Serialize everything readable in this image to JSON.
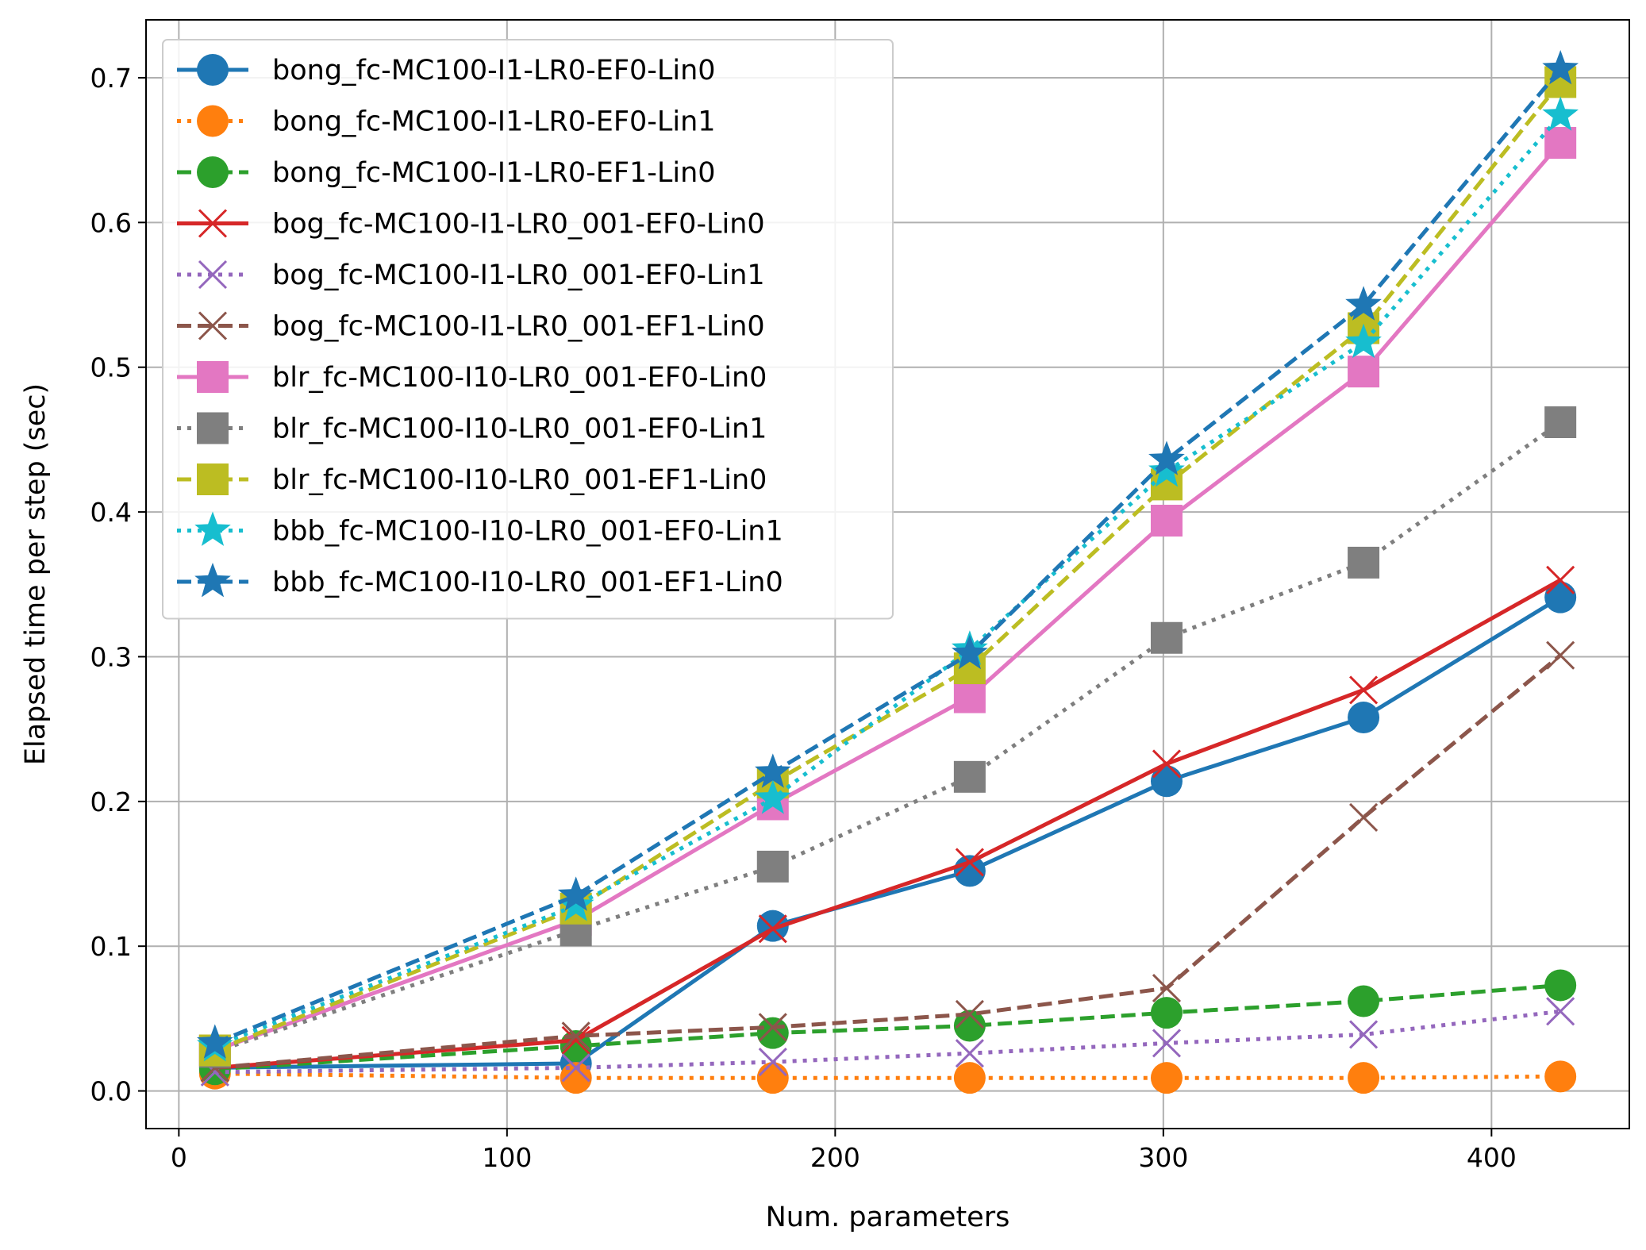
{
  "chart_data": {
    "type": "line",
    "title": "",
    "xlabel": "Num. parameters",
    "ylabel": "Elapsed time per step (sec)",
    "xlim": [
      -10,
      442
    ],
    "ylim": [
      -0.026,
      0.74
    ],
    "xticks": [
      0,
      100,
      200,
      300,
      400
    ],
    "yticks": [
      0.0,
      0.1,
      0.2,
      0.3,
      0.4,
      0.5,
      0.6,
      0.7
    ],
    "xtick_labels": [
      "0",
      "100",
      "200",
      "300",
      "400"
    ],
    "ytick_labels": [
      "0.0",
      "0.1",
      "0.2",
      "0.3",
      "0.4",
      "0.5",
      "0.6",
      "0.7"
    ],
    "grid": true,
    "legend_position": "upper-left",
    "x": [
      11,
      121,
      181,
      241,
      301,
      361,
      421
    ],
    "series": [
      {
        "name": "bong_fc-MC100-I1-LR0-EF0-Lin0",
        "color": "#1f77b4",
        "linestyle": "solid",
        "marker": "circle",
        "values": [
          0.016,
          0.019,
          0.114,
          0.152,
          0.214,
          0.258,
          0.341
        ]
      },
      {
        "name": "bong_fc-MC100-I1-LR0-EF0-Lin1",
        "color": "#ff7f0e",
        "linestyle": "dotted",
        "marker": "circle",
        "values": [
          0.012,
          0.009,
          0.009,
          0.009,
          0.009,
          0.009,
          0.01
        ]
      },
      {
        "name": "bong_fc-MC100-I1-LR0-EF1-Lin0",
        "color": "#2ca02c",
        "linestyle": "dashed",
        "marker": "circle",
        "values": [
          0.015,
          0.031,
          0.04,
          0.045,
          0.054,
          0.062,
          0.073
        ]
      },
      {
        "name": "bog_fc-MC100-I1-LR0_001-EF0-Lin0",
        "color": "#d62728",
        "linestyle": "solid",
        "marker": "x",
        "values": [
          0.016,
          0.035,
          0.112,
          0.158,
          0.226,
          0.277,
          0.353
        ]
      },
      {
        "name": "bog_fc-MC100-I1-LR0_001-EF0-Lin1",
        "color": "#9467bd",
        "linestyle": "dotted",
        "marker": "x",
        "values": [
          0.013,
          0.016,
          0.02,
          0.026,
          0.033,
          0.039,
          0.055
        ]
      },
      {
        "name": "bog_fc-MC100-I1-LR0_001-EF1-Lin0",
        "color": "#8c564b",
        "linestyle": "dashed",
        "marker": "x",
        "values": [
          0.016,
          0.038,
          0.044,
          0.053,
          0.071,
          0.189,
          0.301
        ]
      },
      {
        "name": "blr_fc-MC100-I10-LR0_001-EF0-Lin0",
        "color": "#e377c2",
        "linestyle": "solid",
        "marker": "square",
        "values": [
          0.028,
          0.118,
          0.198,
          0.272,
          0.394,
          0.497,
          0.655
        ]
      },
      {
        "name": "blr_fc-MC100-I10-LR0_001-EF0-Lin1",
        "color": "#7f7f7f",
        "linestyle": "dotted",
        "marker": "square",
        "values": [
          0.027,
          0.111,
          0.155,
          0.217,
          0.313,
          0.365,
          0.462
        ]
      },
      {
        "name": "blr_fc-MC100-I10-LR0_001-EF1-Lin0",
        "color": "#bcbd22",
        "linestyle": "dashed",
        "marker": "square",
        "values": [
          0.028,
          0.126,
          0.213,
          0.292,
          0.419,
          0.527,
          0.697
        ]
      },
      {
        "name": "bbb_fc-MC100-I10-LR0_001-EF0-Lin1",
        "color": "#17becf",
        "linestyle": "dotted",
        "marker": "star",
        "values": [
          0.031,
          0.128,
          0.202,
          0.305,
          0.428,
          0.517,
          0.674
        ]
      },
      {
        "name": "bbb_fc-MC100-I10-LR0_001-EF1-Lin0",
        "color": "#1f77b4",
        "linestyle": "dashed",
        "marker": "star",
        "values": [
          0.033,
          0.135,
          0.22,
          0.302,
          0.436,
          0.543,
          0.706
        ]
      }
    ]
  }
}
